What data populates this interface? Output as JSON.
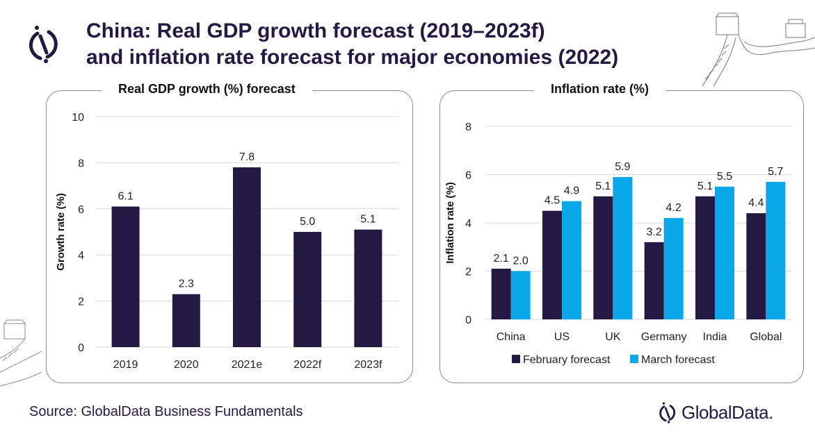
{
  "header": {
    "title_line1": "China: Real GDP growth forecast (2019–2023f)",
    "title_line2": "and inflation rate forecast for major economies (2022)"
  },
  "colors": {
    "february": "#231942",
    "march": "#0aa8e8",
    "text": "#231942",
    "grid": "#d9d9d9"
  },
  "chart_data": [
    {
      "type": "bar",
      "title": "Real GDP growth (%) forecast",
      "xlabel": "",
      "ylabel": "Growth rate (%)",
      "ylim": [
        0,
        10
      ],
      "yticks": [
        0,
        2,
        4,
        6,
        8,
        10
      ],
      "grid": true,
      "categories": [
        "2019",
        "2020",
        "2021e",
        "2022f",
        "2023f"
      ],
      "values": [
        6.1,
        2.3,
        7.8,
        5.0,
        5.1
      ],
      "labels": [
        "6.1",
        "2.3",
        "7.8",
        "5.0",
        "5.1"
      ]
    },
    {
      "type": "bar",
      "title": "Inflation rate (%)",
      "xlabel": "",
      "ylabel": "Inflation rate (%)",
      "ylim": [
        0,
        8
      ],
      "yticks": [
        0,
        2,
        4,
        6,
        8
      ],
      "grid": true,
      "legend": "bottom",
      "categories": [
        "China",
        "US",
        "UK",
        "Germany",
        "India",
        "Global"
      ],
      "series": [
        {
          "name": "February forecast",
          "values": [
            2.1,
            4.5,
            5.1,
            3.2,
            5.1,
            4.4
          ],
          "labels": [
            "2.1",
            "4.5",
            "5.1",
            "3.2",
            "5.1",
            "4.4"
          ]
        },
        {
          "name": "March forecast",
          "values": [
            2.0,
            4.9,
            5.9,
            4.2,
            5.5,
            5.7
          ],
          "labels": [
            "2.0",
            "4.9",
            "5.9",
            "4.2",
            "5.5",
            "5.7"
          ]
        }
      ]
    }
  ],
  "footer": {
    "source": "Source: GlobalData Business Fundamentals",
    "brand": "GlobalData."
  },
  "icons": {
    "logo": "globaldata-logo-icon"
  }
}
